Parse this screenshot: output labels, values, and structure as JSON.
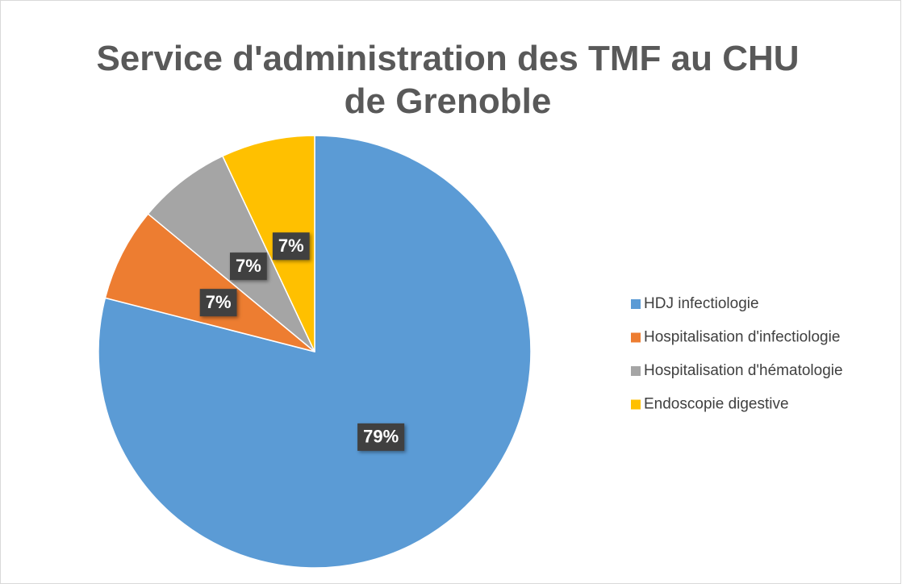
{
  "chart_data": {
    "type": "pie",
    "title": "Service d'administration des TMF au CHU de Grenoble",
    "categories": [
      "HDJ infectiologie",
      "Hospitalisation d'infectiologie",
      "Hospitalisation d'hématologie",
      "Endoscopie digestive"
    ],
    "values": [
      79,
      7,
      7,
      7
    ],
    "value_labels": [
      "79%",
      "7%",
      "7%",
      "7%"
    ],
    "colors": [
      "#5b9bd5",
      "#ed7d31",
      "#a5a5a5",
      "#ffc000"
    ],
    "legend": "right"
  }
}
